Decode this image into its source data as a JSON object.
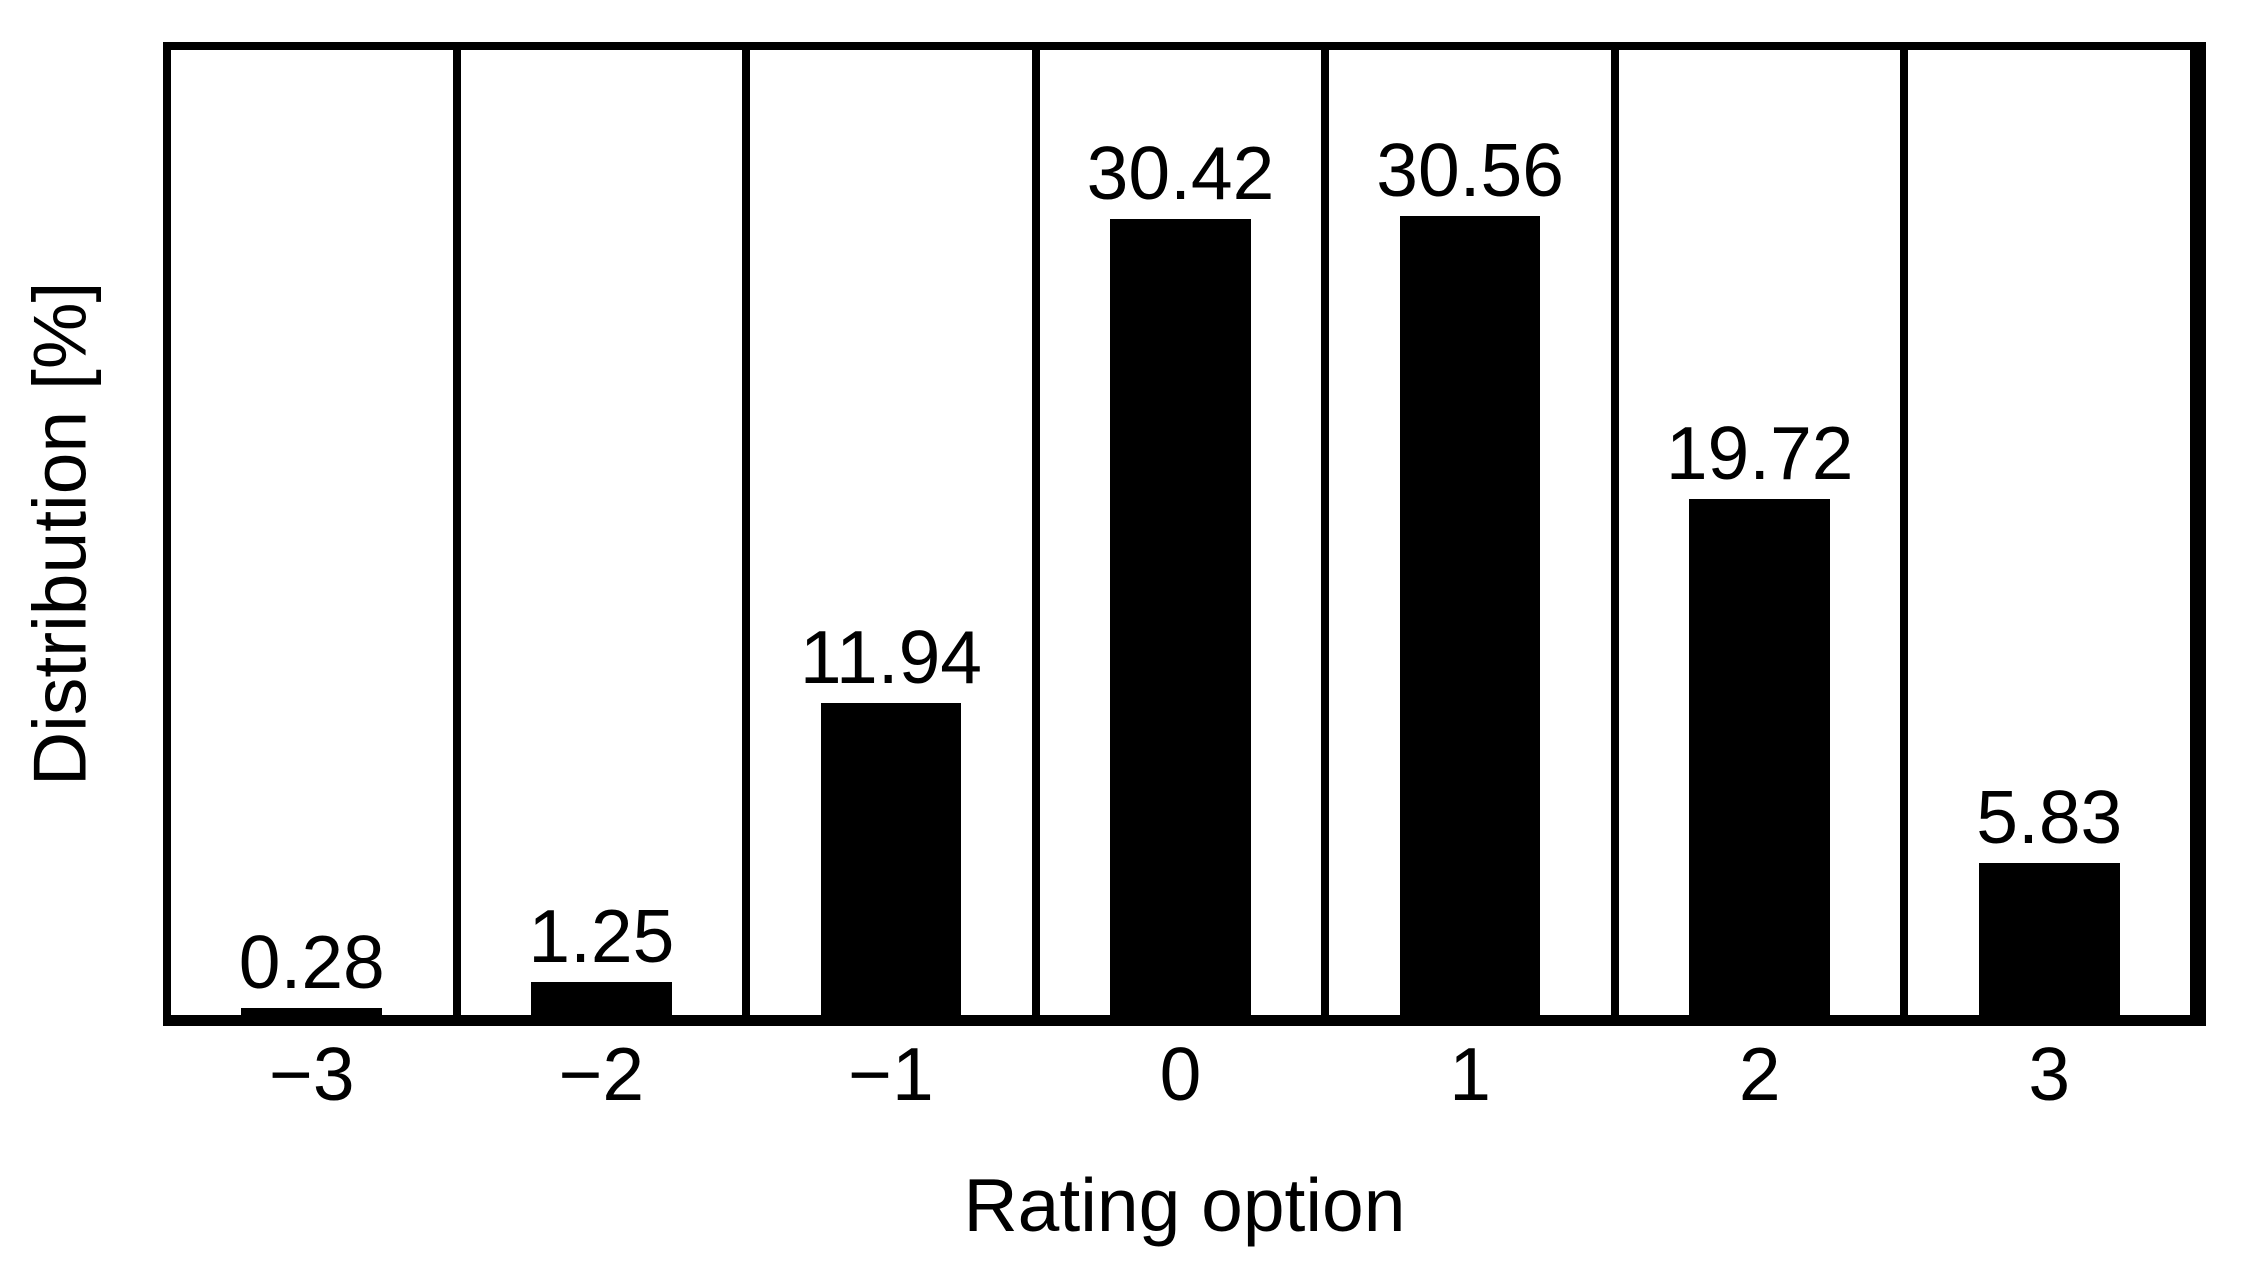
{
  "chart_data": {
    "type": "bar",
    "categories": [
      "−3",
      "−2",
      "−1",
      "0",
      "1",
      "2",
      "3"
    ],
    "values": [
      0.28,
      1.25,
      11.94,
      30.42,
      30.56,
      19.72,
      5.83
    ],
    "bar_labels": [
      "0.28",
      "1.25",
      "11.94",
      "30.42",
      "30.56",
      "19.72",
      "5.83"
    ],
    "title": "",
    "xlabel": "Rating option",
    "ylabel": "Distribution [%]",
    "ylim": [
      0,
      36.9
    ],
    "yticks_visible": false,
    "grid": "vertical-category-dividers",
    "legend": "none",
    "bar_color": "#000000",
    "line_color": "#000000",
    "background_color": "#ffffff"
  }
}
